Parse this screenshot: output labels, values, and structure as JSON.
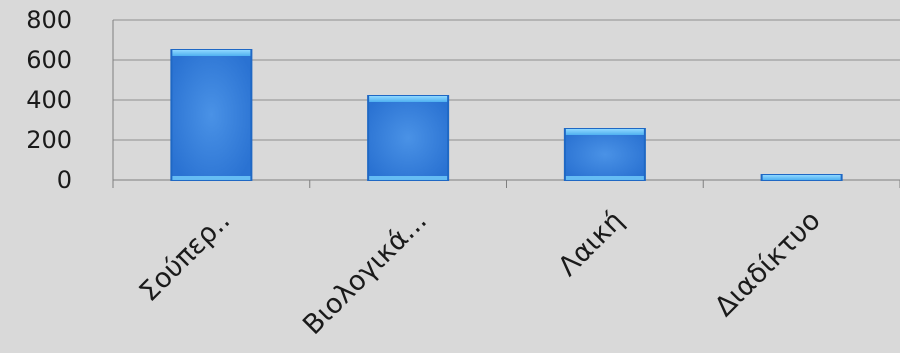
{
  "chart_data": {
    "type": "bar",
    "categories": [
      "Σούπερ..",
      "Βιολογικά...",
      "Λαική",
      "Διαδίκτυο"
    ],
    "values": [
      650,
      420,
      255,
      25
    ],
    "title": "",
    "xlabel": "",
    "ylabel": "",
    "ylim": [
      0,
      800
    ],
    "yticks": [
      "0",
      "200",
      "400",
      "600",
      "800"
    ],
    "grid": true,
    "colors": {
      "background": "#d9d9d9",
      "bar_fill": "#3a86dd",
      "bar_edge": "#1f68c4",
      "bar_top": "#6cc4f7",
      "gridline": "#8f8f8f",
      "axis": "#7f7f7f"
    }
  }
}
